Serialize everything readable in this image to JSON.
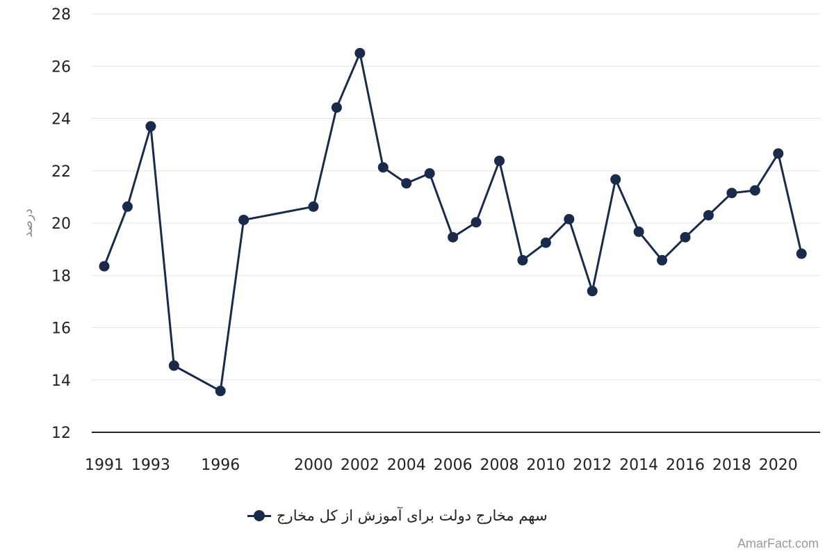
{
  "chart_data": {
    "type": "line",
    "x": [
      1991,
      1992,
      1993,
      1994,
      1996,
      1997,
      2000,
      2001,
      2002,
      2003,
      2004,
      2005,
      2006,
      2007,
      2008,
      2009,
      2010,
      2011,
      2012,
      2013,
      2014,
      2015,
      2016,
      2017,
      2018,
      2019,
      2020,
      2021
    ],
    "series": [
      {
        "name": "سهم مخارج دولت برای آموزش از کل مخارج",
        "color": "#1a2a4a",
        "values": [
          18.35,
          20.63,
          23.7,
          14.55,
          13.58,
          20.12,
          20.63,
          24.42,
          26.5,
          22.13,
          21.52,
          21.9,
          19.46,
          20.03,
          22.38,
          18.58,
          19.25,
          20.15,
          17.4,
          21.67,
          19.67,
          18.58,
          19.46,
          20.3,
          21.15,
          21.25,
          22.66,
          18.83
        ]
      }
    ],
    "xtick_labels": [
      "1991",
      "1993",
      "1996",
      "2000",
      "2002",
      "2004",
      "2006",
      "2008",
      "2010",
      "2012",
      "2014",
      "2016",
      "2018",
      "2020"
    ],
    "xtick_positions": [
      1991,
      1993,
      1996,
      2000,
      2002,
      2004,
      2006,
      2008,
      2010,
      2012,
      2014,
      2016,
      2018,
      2020
    ],
    "ytick_labels": [
      "12",
      "14",
      "16",
      "18",
      "20",
      "22",
      "24",
      "26",
      "28"
    ],
    "ytick_values": [
      12,
      14,
      16,
      18,
      20,
      22,
      24,
      26,
      28
    ],
    "ylim": [
      12,
      28
    ],
    "ylabel": "درصد",
    "xlabel": "",
    "title": "",
    "grid": "horizontal",
    "legend_position": "bottom"
  },
  "watermark": "AmarFact.com"
}
